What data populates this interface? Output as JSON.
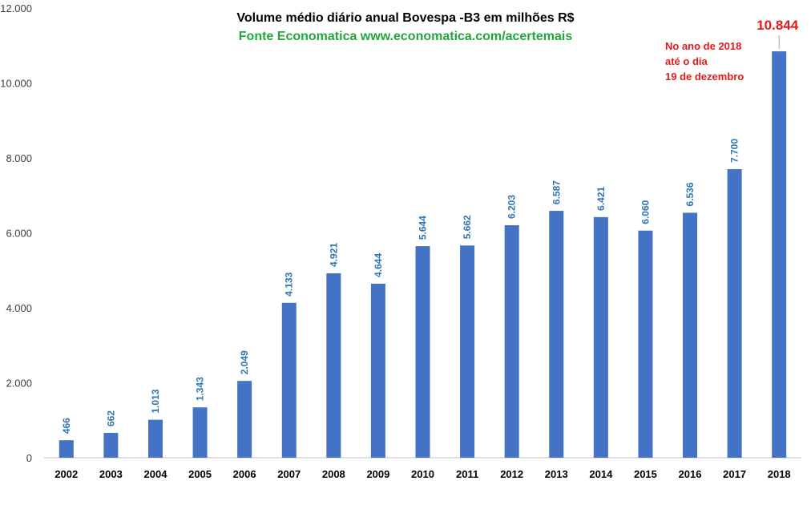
{
  "colors": {
    "bar": "#4472C4",
    "data_label": "#2E75B6",
    "highlight": "#E31B1B",
    "subtitle": "#1FA83A",
    "axis": "#BFBFBF"
  },
  "chart_data": {
    "type": "bar",
    "title": "Volume médio diário anual  Bovespa -B3 em milhões R$",
    "subtitle": "Fonte Economatica www.economatica.com/acertemais",
    "categories": [
      "2002",
      "2003",
      "2004",
      "2005",
      "2006",
      "2007",
      "2008",
      "2009",
      "2010",
      "2011",
      "2012",
      "2013",
      "2014",
      "2015",
      "2016",
      "2017",
      "2018"
    ],
    "values": [
      466,
      662,
      1013,
      1343,
      2049,
      4133,
      4921,
      4644,
      5644,
      5662,
      6203,
      6587,
      6421,
      6060,
      6536,
      7700,
      10844
    ],
    "data_labels": [
      "466",
      "662",
      "1.013",
      "1.343",
      "2.049",
      "4.133",
      "4.921",
      "4.644",
      "5.644",
      "5.662",
      "6.203",
      "6.587",
      "6.421",
      "6.060",
      "6.536",
      "7.700",
      "10.844"
    ],
    "ylim": [
      0,
      12000
    ],
    "yticks": [
      0,
      2000,
      4000,
      6000,
      8000,
      10000,
      12000
    ],
    "ytick_labels": [
      "0",
      "2.000",
      "4.000",
      "6.000",
      "8.000",
      "10.000",
      "12.000"
    ],
    "grid": false,
    "legend": "none",
    "annotation_lines": [
      "No ano de 2018",
      "até o dia",
      "19 de dezembro"
    ]
  }
}
